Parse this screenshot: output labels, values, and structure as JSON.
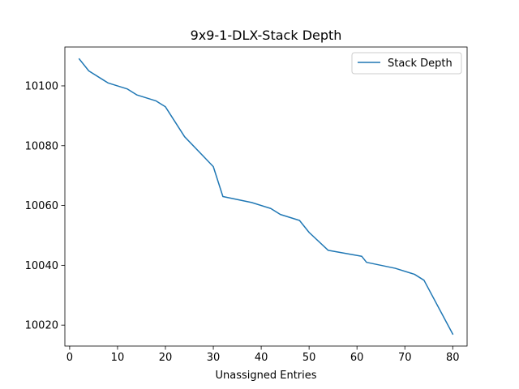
{
  "chart_data": {
    "type": "line",
    "title": "9x9-1-DLX-Stack Depth",
    "xlabel": "Unassigned Entries",
    "ylabel": "",
    "xlim": [
      -1,
      83
    ],
    "ylim": [
      10013,
      10113
    ],
    "xticks": [
      0,
      10,
      20,
      30,
      40,
      50,
      60,
      70,
      80
    ],
    "yticks": [
      10020,
      10040,
      10060,
      10080,
      10100
    ],
    "grid": false,
    "legend": {
      "placement": "top-right"
    },
    "series": [
      {
        "name": "Stack Depth",
        "color": "#1f77b4",
        "x": [
          2,
          4,
          8,
          12,
          14,
          18,
          20,
          24,
          30,
          32,
          38,
          42,
          44,
          48,
          50,
          54,
          61,
          62,
          68,
          72,
          74,
          80
        ],
        "y": [
          10109,
          10105,
          10101,
          10099,
          10097,
          10095,
          10093,
          10083,
          10073,
          10063,
          10061,
          10059,
          10057,
          10055,
          10051,
          10045,
          10043,
          10041,
          10039,
          10037,
          10035,
          10017
        ]
      }
    ]
  }
}
